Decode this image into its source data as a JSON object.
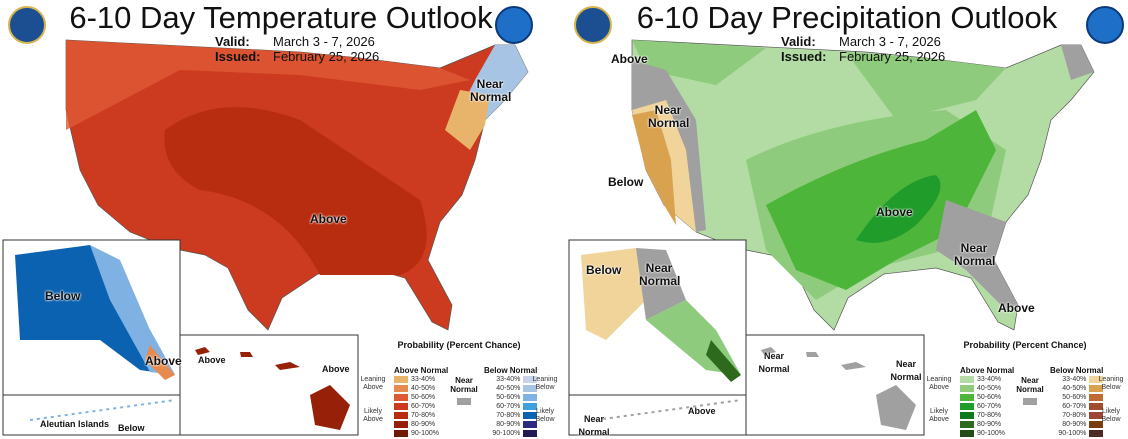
{
  "temperature": {
    "title": "6-10 Day Temperature Outlook",
    "valid_label": "Valid:",
    "valid": "March 3 - 7, 2026",
    "issued_label": "Issued:",
    "issued": "February 25, 2026",
    "map_labels": {
      "above_main": "Above",
      "near_normal_ne": "Near Normal",
      "below_alaska": "Below",
      "above_alaska": "Above",
      "aleutian": "Aleutian Islands",
      "below_aleutian": "Below",
      "above_hawaii_w": "Above",
      "above_hawaii_e": "Above"
    },
    "legend": {
      "title": "Probability (Percent Chance)",
      "above_header": "Above Normal",
      "below_header": "Below Normal",
      "near_normal": "Near Normal",
      "leaning_above": "Leaning Above",
      "likely_above": "Likely Above",
      "leaning_below": "Leaning Below",
      "likely_below": "Likely Below",
      "ranges": [
        "33-40%",
        "40-50%",
        "50-60%",
        "60-70%",
        "70-80%",
        "80-90%",
        "90-100%"
      ],
      "above_colors": [
        "#e8b36b",
        "#e68a4f",
        "#de5a35",
        "#cc3b1f",
        "#b82c10",
        "#962008",
        "#6e1a05"
      ],
      "below_colors": [
        "#c6d3ea",
        "#a7c4e4",
        "#7fb2e3",
        "#3fa0e0",
        "#0b62b0",
        "#2e2a80",
        "#231a55"
      ]
    },
    "colors": {
      "main": "#cc3b1f",
      "core": "#b82c10",
      "light": "#de5a35",
      "near": "#a0a0a0"
    }
  },
  "precipitation": {
    "title": "6-10 Day Precipitation Outlook",
    "valid_label": "Valid:",
    "valid": "March 3 - 7, 2026",
    "issued_label": "Issued:",
    "issued": "February 25, 2026",
    "map_labels": {
      "above_nw": "Above",
      "near_normal_w": "Near Normal",
      "below_ca": "Below",
      "above_central": "Above",
      "near_normal_se": "Near Normal",
      "above_fl": "Above",
      "below_alaska": "Below",
      "near_normal_alaska": "Near Normal",
      "near_normal_aleutian": "Near Normal",
      "above_alaska_se": "Above",
      "near_normal_hawaii_w": "Near Normal",
      "near_normal_hawaii_e": "Near Normal"
    },
    "legend": {
      "title": "Probability (Percent Chance)",
      "above_header": "Above Normal",
      "below_header": "Below Normal",
      "near_normal": "Near Normal",
      "leaning_above": "Leaning Above",
      "likely_above": "Likely Above",
      "leaning_below": "Leaning Below",
      "likely_below": "Likely Below",
      "ranges": [
        "33-40%",
        "40-50%",
        "50-60%",
        "60-70%",
        "70-80%",
        "80-90%",
        "90-100%"
      ],
      "above_colors": [
        "#b3dba4",
        "#8ecb7c",
        "#4db53a",
        "#1f9c2a",
        "#0f7a1c",
        "#2e6a1e",
        "#234d17"
      ],
      "below_colors": [
        "#f0d49a",
        "#d9a24f",
        "#c06a34",
        "#a0502e",
        "#9e4535",
        "#7a3d10",
        "#4e2a24"
      ]
    },
    "colors": {
      "main": "#b3dba4",
      "mid": "#8ecb7c",
      "core": "#4db53a",
      "deep": "#1f9c2a",
      "near": "#a0a0a0",
      "dry1": "#f0d49a",
      "dry2": "#d9a24f"
    }
  }
}
